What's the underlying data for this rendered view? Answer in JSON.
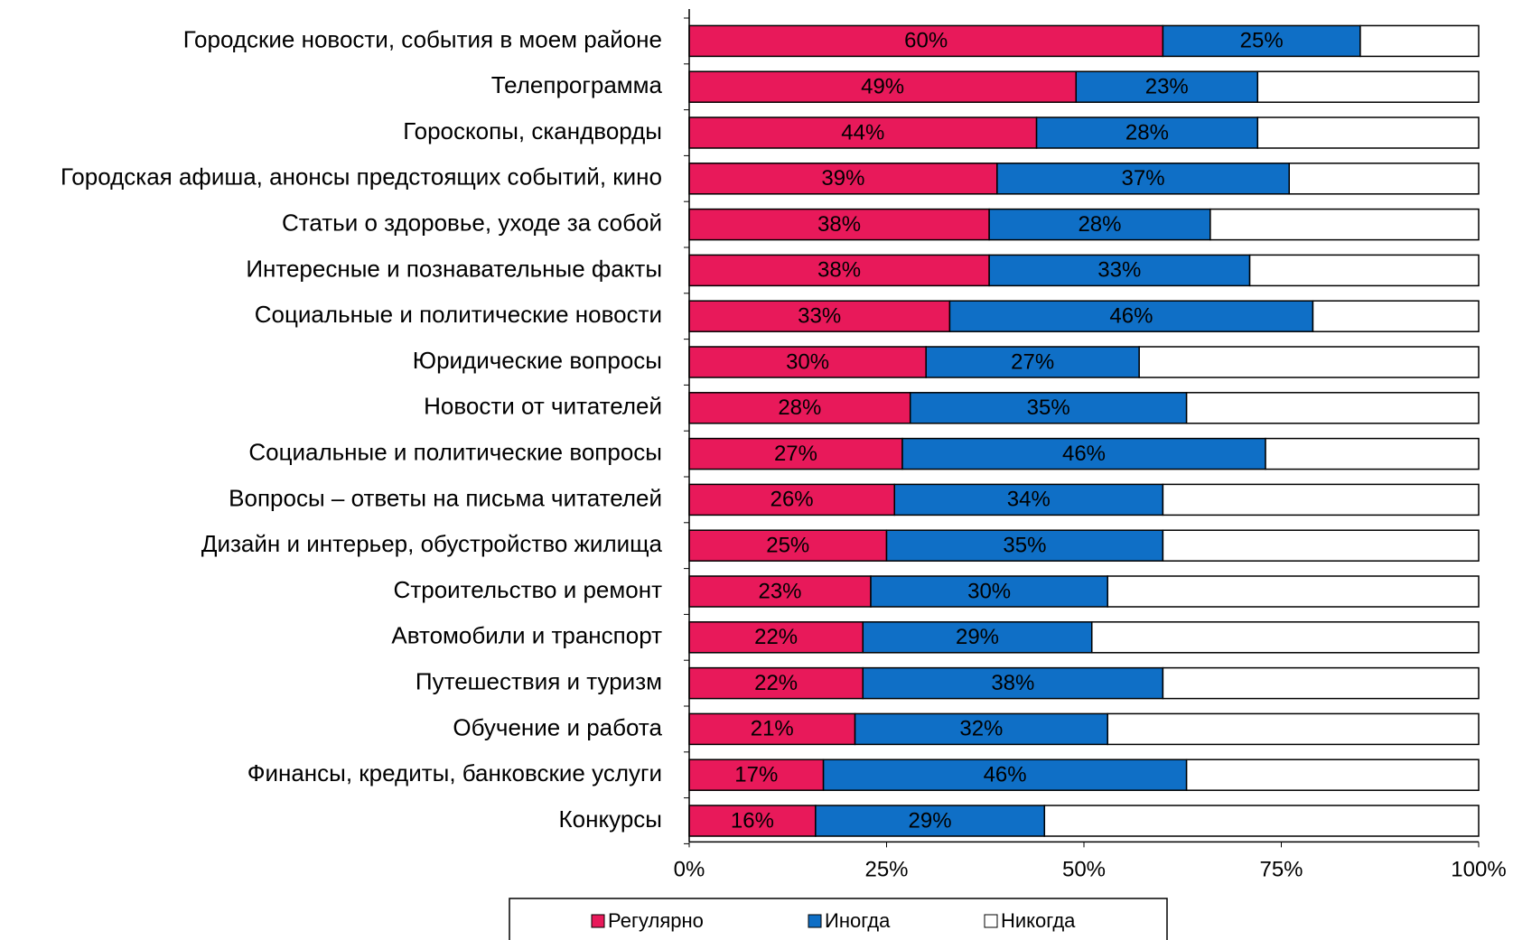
{
  "chart_data": {
    "type": "stacked-barh",
    "categories": [
      "Городские новости, события в моем районе",
      "Телепрограмма",
      "Гороскопы, скандворды",
      "Городская афиша, анонсы предстоящих событий, кино",
      "Статьи о здоровье, уходе за собой",
      "Интересные и познавательные факты",
      "Социальные и политические новости",
      "Юридические вопросы",
      "Новости от читателей",
      "Социальные и политические вопросы",
      "Вопросы – ответы на письма читателей",
      "Дизайн и интерьер, обустройство жилища",
      "Строительство и ремонт",
      "Автомобили и транспорт",
      "Путешествия и туризм",
      "Обучение и работа",
      "Финансы, кредиты, банковские услуги",
      "Конкурсы"
    ],
    "series": [
      {
        "name": "Регулярно",
        "color": "#e8195a",
        "values": [
          60,
          49,
          44,
          39,
          38,
          38,
          33,
          30,
          28,
          27,
          26,
          25,
          23,
          22,
          22,
          21,
          17,
          16
        ],
        "value_labels": [
          "60%",
          "49%",
          "44%",
          "39%",
          "38%",
          "38%",
          "33%",
          "30%",
          "28%",
          "27%",
          "26%",
          "25%",
          "23%",
          "22%",
          "22%",
          "21%",
          "17%",
          "16%"
        ]
      },
      {
        "name": "Иногда",
        "color": "#0f6fc6",
        "values": [
          25,
          23,
          28,
          37,
          28,
          33,
          46,
          27,
          35,
          46,
          34,
          35,
          30,
          29,
          38,
          32,
          46,
          29
        ],
        "value_labels": [
          "25%",
          "23%",
          "28%",
          "37%",
          "28%",
          "33%",
          "46%",
          "27%",
          "35%",
          "46%",
          "34%",
          "35%",
          "30%",
          "29%",
          "38%",
          "32%",
          "46%",
          "29%"
        ]
      },
      {
        "name": "Никогда",
        "color": "#ffffff",
        "values": [
          15,
          28,
          28,
          24,
          34,
          29,
          21,
          43,
          37,
          27,
          40,
          40,
          47,
          49,
          40,
          47,
          37,
          55
        ]
      }
    ],
    "xlim": [
      0,
      100
    ],
    "xticks": [
      {
        "value": 0,
        "label": "0%"
      },
      {
        "value": 25,
        "label": "25%"
      },
      {
        "value": 50,
        "label": "50%"
      },
      {
        "value": 75,
        "label": "75%"
      },
      {
        "value": 100,
        "label": "100%"
      }
    ],
    "legend": "bottom"
  }
}
